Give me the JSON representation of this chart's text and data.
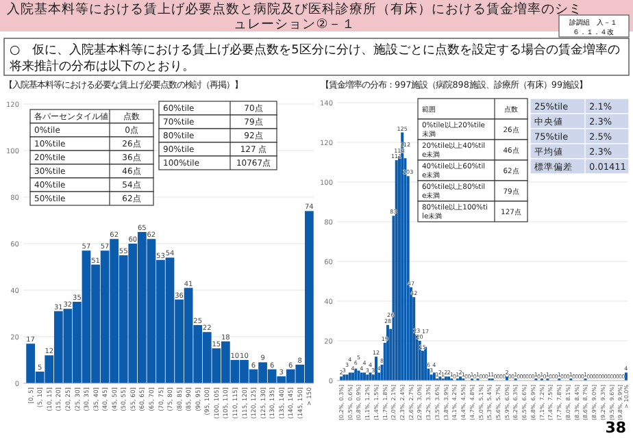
{
  "chart_data": [
    {
      "type": "other",
      "title": "入院基本料等における賃上げ必要点数と病院及び医科診療所（有床）における賃金増率のシミュレーション②－１",
      "annotations": [
        "診調組　入－１",
        "６．１．４改",
        "○　仮に、入院基本料等における賃上げ必要点数を5区分に分け、施設ごとに点数を設定する場合の賃金増率の将来推計の分布は以下のとおり。",
        "38"
      ]
    },
    {
      "type": "bar",
      "title": "【入院基本料等における必要な賃上げ必要点数の検討（再掲）】",
      "color": "#0b5cad",
      "grid": "y",
      "data_labels": true,
      "ylim": [
        0,
        120
      ],
      "yticks": [
        0,
        20,
        40,
        60,
        80,
        100,
        120
      ],
      "categories": [
        "[0, 5]",
        "(5, 10]",
        "(10, 15]",
        "(15, 20]",
        "(20, 25]",
        "(25, 30]",
        "(30, 35]",
        "(35, 40]",
        "(40, 45]",
        "(45, 50]",
        "(50, 55]",
        "(55, 60]",
        "(60, 65]",
        "(65, 70]",
        "(70, 75]",
        "(75, 80]",
        "(80, 85]",
        "(85, 90]",
        "(90, 95]",
        "(95, 100]",
        "(100, 105]",
        "(105, 110]",
        "(110, 115]",
        "(115, 120]",
        "(120, 125]",
        "(125, 130]",
        "(130, 135]",
        "(135, 140]",
        "(140, 145]",
        "(145, 150]",
        "> 150"
      ],
      "values": [
        17,
        5,
        12,
        31,
        32,
        35,
        57,
        51,
        57,
        62,
        55,
        60,
        65,
        62,
        53,
        54,
        36,
        41,
        25,
        22,
        15,
        18,
        10,
        10,
        6,
        9,
        6,
        3,
        6,
        8,
        74
      ],
      "annotations": [
        "各パーセンタイル値",
        "点数",
        "0%tile",
        "0点",
        "10%tile",
        "26点",
        "20%tile",
        "36点",
        "30%tile",
        "46点",
        "40%tile",
        "54点",
        "50%tile",
        "62点",
        "60%tile",
        "70点",
        "70%tile",
        "79点",
        "80%tile",
        "92点",
        "90%tile",
        "127 点",
        "100%tile",
        "10767点"
      ]
    },
    {
      "type": "bar",
      "title": "【賃金増率の分布：997施設（病院898施設、診療所（有床）99施設】",
      "color": "#0b5cad",
      "grid": "y",
      "data_labels": true,
      "ylim": [
        0,
        140
      ],
      "yticks": [
        0,
        20,
        40,
        60,
        80,
        100,
        120,
        140
      ],
      "categories": [
        "[0.2%, 0.3%]",
        null,
        null,
        "(0.5%, 0.6%]",
        null,
        null,
        "(0.8%, 0.9%]",
        null,
        null,
        "(1.1%, 1.2%]",
        null,
        null,
        "(1.4%, 1.5%]",
        null,
        null,
        "(1.7%, 1.8%]",
        null,
        null,
        "(2.0%, 2.1%]",
        null,
        null,
        "(2.3%, 2.4%]",
        null,
        null,
        "(2.6%, 2.7%]",
        null,
        null,
        "(2.9%, 3.0%]",
        null,
        null,
        "(3.2%, 3.3%]",
        null,
        null,
        "(3.5%, 3.6%]",
        null,
        null,
        "(3.8%, 3.9%]",
        null,
        null,
        "(4.1%, 4.2%]",
        null,
        null,
        "(4.4%, 4.5%]",
        null,
        null,
        "(4.7%, 4.8%]",
        null,
        null,
        "(5.0%, 5.1%]",
        null,
        null,
        "(5.3%, 5.4%]",
        null,
        null,
        "(5.6%, 5.7%]",
        null,
        null,
        "(5.9%, 6.0%]",
        null,
        null,
        "(6.2%, 6.3%]",
        null,
        null,
        "(6.5%, 6.6%]",
        null,
        null,
        "(6.8%, 6.9%]",
        null,
        null,
        "(7.1%, 7.2%]",
        null,
        null,
        "(7.4%, 7.5%]",
        null,
        null,
        "(7.7%, 7.8%]",
        null,
        null,
        "(8.0%, 8.1%]",
        null,
        null,
        "(8.3%, 8.4%]",
        null,
        null,
        "(8.6%, 8.7%]",
        null,
        null,
        "(8.9%, 9.0%]",
        null,
        null,
        "(9.2%, 9.3%]",
        null,
        null,
        "(9.5%, 9.6%]",
        null,
        null,
        "(9.8%, 9.9%]",
        null,
        "> 10.0%"
      ],
      "values": [
        2,
        3,
        3,
        4,
        4,
        6,
        5,
        4,
        4,
        3,
        4,
        3,
        12,
        4,
        8,
        19,
        28,
        26,
        83,
        111,
        113,
        125,
        112,
        103,
        47,
        42,
        23,
        20,
        15,
        17,
        6,
        3,
        4,
        1,
        2,
        1,
        2,
        2,
        1,
        0,
        1,
        2,
        1,
        0,
        0,
        1,
        0,
        1,
        0,
        0,
        0,
        1,
        1,
        0,
        0,
        0,
        0,
        2,
        0,
        0,
        1,
        0,
        0,
        0,
        0,
        0,
        0,
        1,
        0,
        1,
        0,
        1,
        0,
        0,
        0,
        1,
        0,
        0,
        0,
        1,
        0,
        0,
        0,
        0,
        1,
        0,
        0,
        0,
        0,
        0,
        0,
        0,
        0,
        0,
        0,
        0,
        0,
        0,
        4
      ],
      "annotations": [
        "範囲",
        "点数",
        "0%tile以上20%tile未満",
        "26点",
        "20%tile以上40%tile未満",
        "46点",
        "40%tile以上60%tile未満",
        "62点",
        "60%tile以上80%tile未満",
        "79点",
        "80%tile以上100%tile未満",
        "127点",
        "25%tile",
        "2.1%",
        "中央値",
        "2.3%",
        "75%tile",
        "2.5%",
        "平均値",
        "2.3%",
        "標準偏差",
        "0.01411"
      ]
    }
  ]
}
